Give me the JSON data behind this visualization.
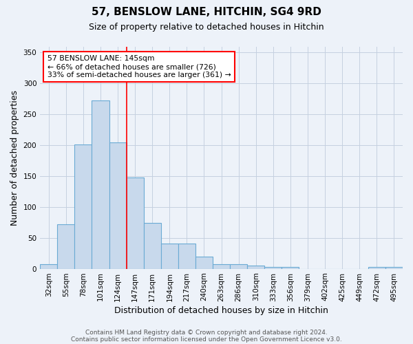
{
  "title": "57, BENSLOW LANE, HITCHIN, SG4 9RD",
  "subtitle": "Size of property relative to detached houses in Hitchin",
  "xlabel": "Distribution of detached houses by size in Hitchin",
  "ylabel": "Number of detached properties",
  "categories": [
    "32sqm",
    "55sqm",
    "78sqm",
    "101sqm",
    "124sqm",
    "147sqm",
    "171sqm",
    "194sqm",
    "217sqm",
    "240sqm",
    "263sqm",
    "286sqm",
    "310sqm",
    "333sqm",
    "356sqm",
    "379sqm",
    "402sqm",
    "425sqm",
    "449sqm",
    "472sqm",
    "495sqm"
  ],
  "values": [
    7,
    72,
    201,
    272,
    204,
    148,
    74,
    41,
    41,
    20,
    7,
    7,
    5,
    3,
    3,
    0,
    0,
    0,
    0,
    3,
    3
  ],
  "bar_color": "#c8d9ec",
  "bar_edge_color": "#6aaad4",
  "grid_color": "#c5d0e0",
  "background_color": "#edf2f9",
  "annotation_text": "57 BENSLOW LANE: 145sqm\n← 66% of detached houses are smaller (726)\n33% of semi-detached houses are larger (361) →",
  "annotation_box_color": "white",
  "annotation_box_edge_color": "red",
  "marker_color": "red",
  "marker_idx": 4.5,
  "footnote1": "Contains HM Land Registry data © Crown copyright and database right 2024.",
  "footnote2": "Contains public sector information licensed under the Open Government Licence v3.0.",
  "ylim": [
    0,
    360
  ],
  "yticks": [
    0,
    50,
    100,
    150,
    200,
    250,
    300,
    350
  ],
  "title_fontsize": 11,
  "subtitle_fontsize": 9,
  "ylabel_fontsize": 9,
  "xlabel_fontsize": 9,
  "tick_fontsize": 7.5,
  "ann_fontsize": 7.8
}
